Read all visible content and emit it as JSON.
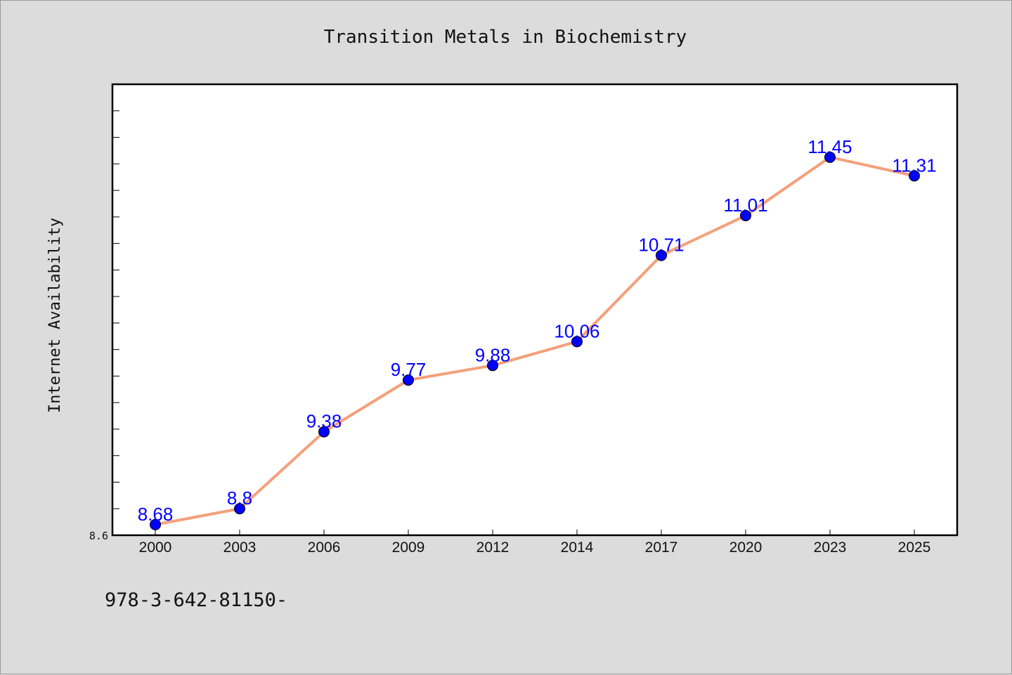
{
  "chart_data": {
    "type": "line",
    "title": "Transition Metals in Biochemistry",
    "xlabel": "",
    "ylabel": "Internet Availability",
    "categories": [
      "2000",
      "2003",
      "2006",
      "2009",
      "2012",
      "2014",
      "2017",
      "2020",
      "2023",
      "2025"
    ],
    "series": [
      {
        "values": [
          8.68,
          8.8,
          9.38,
          9.77,
          9.88,
          10.06,
          10.71,
          11.01,
          11.45,
          11.31
        ],
        "labels": [
          "8.68",
          "8.8",
          "9.38",
          "9.77",
          "9.88",
          "10.06",
          "10.71",
          "11.01",
          "11.45",
          "11.31"
        ],
        "line_color": "#f4a07a",
        "marker_color": "#0000ff"
      }
    ],
    "ylim": [
      8.6,
      12.0
    ],
    "yticks_labeled": [
      "8.6"
    ],
    "grid": false,
    "legend": "none"
  },
  "footer": {
    "isbn": "978-3-642-81150-"
  },
  "colors": {
    "background": "#dcdcdc",
    "plot_background": "#ffffff",
    "line": "#f4a07a",
    "marker": "#0000ff",
    "data_label": "#0000ff"
  }
}
